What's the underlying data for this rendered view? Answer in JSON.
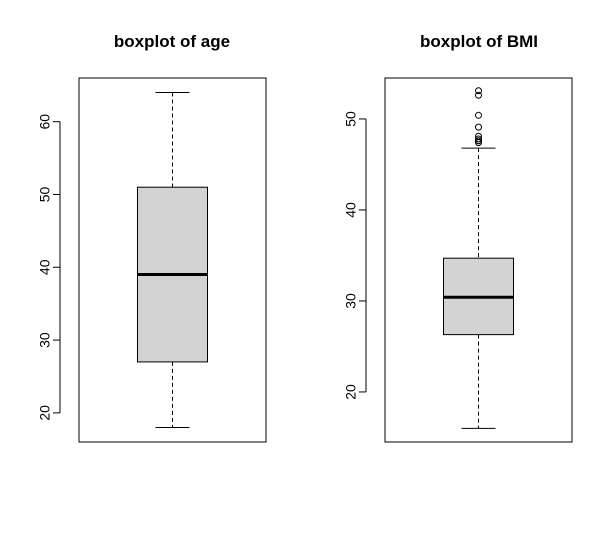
{
  "chart_data": [
    {
      "type": "boxplot",
      "title": "boxplot of age",
      "xlabel": "",
      "ylabel": "",
      "ylim": [
        16,
        66
      ],
      "yticks": [
        20,
        30,
        40,
        50,
        60
      ],
      "box": {
        "min": 18,
        "q1": 27,
        "median": 39,
        "q3": 51,
        "max": 64
      },
      "outliers": [],
      "fill": "#d3d3d3"
    },
    {
      "type": "boxplot",
      "title": "boxplot of BMI",
      "xlabel": "",
      "ylabel": "",
      "ylim": [
        14.5,
        54.5
      ],
      "yticks": [
        20,
        30,
        40,
        50
      ],
      "box": {
        "min": 16,
        "q1": 26.3,
        "median": 30.4,
        "q3": 34.7,
        "max": 46.8
      },
      "outliers": [
        47.4,
        47.6,
        47.8,
        48.1,
        49.1,
        50.4,
        52.6,
        53.1
      ],
      "fill": "#d3d3d3"
    }
  ]
}
